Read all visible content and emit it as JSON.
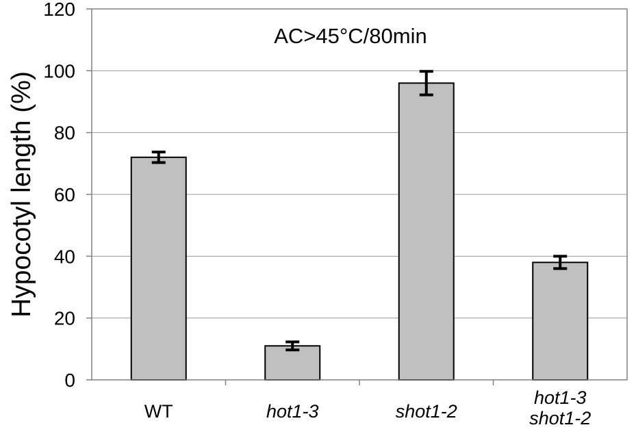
{
  "chart_data": {
    "type": "bar",
    "title": "AC>45°C/80min",
    "ylabel": "Hypocotyl length (%)",
    "xlabel": "",
    "ylim": [
      0,
      120
    ],
    "yticks": [
      0,
      20,
      40,
      60,
      80,
      100,
      120
    ],
    "grid": true,
    "categories": [
      {
        "lines": [
          "WT"
        ],
        "italic": false
      },
      {
        "lines": [
          "hot1-3"
        ],
        "italic": true
      },
      {
        "lines": [
          "shot1-2"
        ],
        "italic": true
      },
      {
        "lines": [
          "hot1-3",
          "shot1-2"
        ],
        "italic": true
      }
    ],
    "values": [
      72,
      11,
      96,
      38
    ],
    "errors": [
      1.7,
      1.3,
      3.8,
      2.0
    ],
    "bar_color": "#c0c0c0"
  }
}
